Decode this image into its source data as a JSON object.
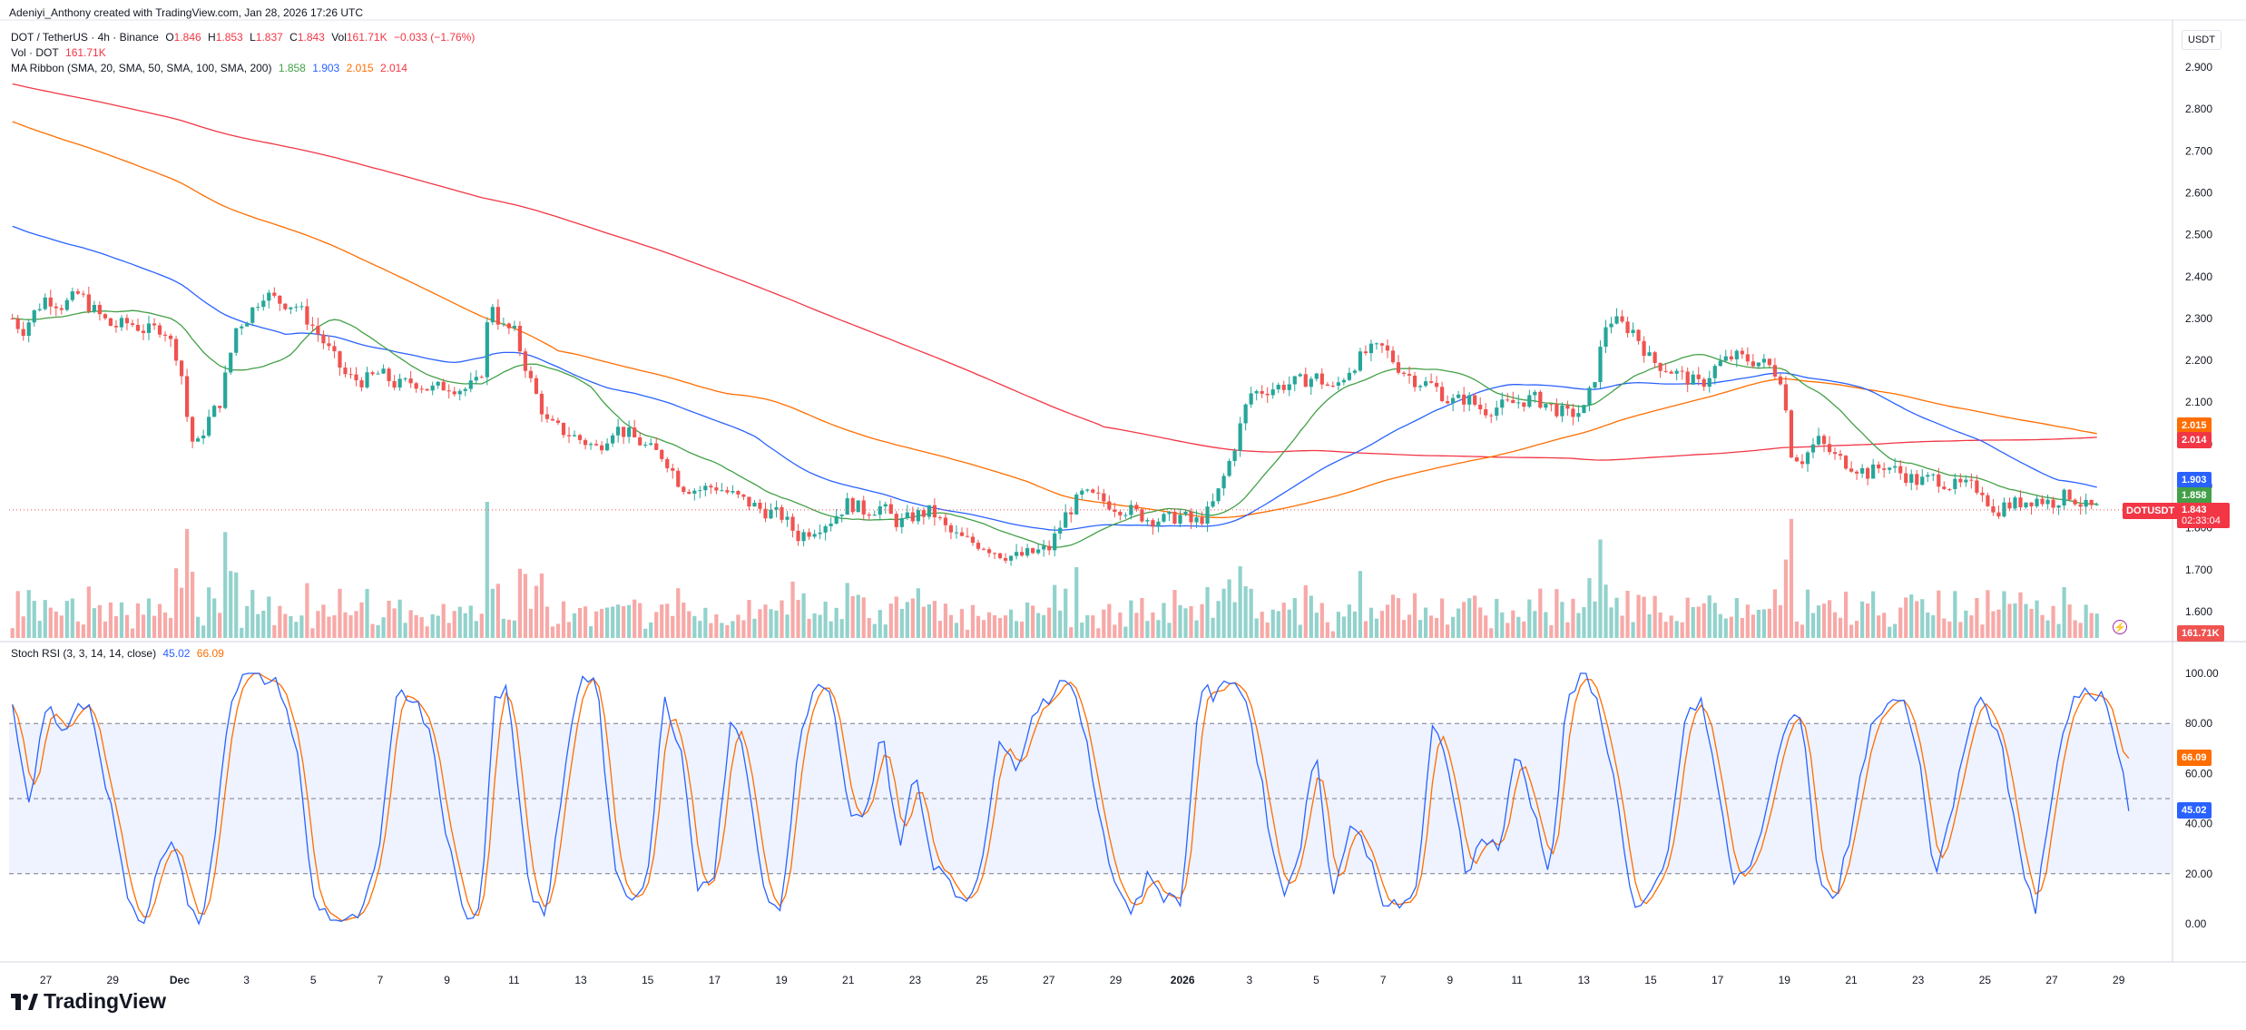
{
  "credit": "Adeniyi_Anthony created with TradingView.com, Jan 28, 2026 17:26 UTC",
  "currency_label": "USDT",
  "legend": {
    "symbol_line": {
      "symbol": "DOT / TetherUS · 4h · Binance",
      "o_label": "O",
      "o": "1.846",
      "h_label": "H",
      "h": "1.853",
      "l_label": "L",
      "l": "1.837",
      "c_label": "C",
      "c": "1.843",
      "vol_label": "Vol",
      "vol": "161.71K",
      "change": "−0.033 (−1.76%)"
    },
    "vol_line": {
      "label": "Vol · DOT",
      "value": "161.71K"
    },
    "ma_line": {
      "label": "MA Ribbon (SMA, 20, SMA, 50, SMA, 100, SMA, 200)",
      "v20": "1.858",
      "v50": "1.903",
      "v100": "2.015",
      "v200": "2.014"
    },
    "stoch_line": {
      "label": "Stoch RSI (3, 3, 14, 14, close)",
      "k": "45.02",
      "d": "66.09"
    }
  },
  "price_tags": {
    "ma100": "2.015",
    "ma200": "2.014",
    "ma50": "1.903",
    "ma20": "1.858",
    "last_price": "1.843",
    "ticker": "DOTUSDT",
    "countdown": "02:33:04",
    "volume": "161.71K",
    "stoch_d": "66.09",
    "stoch_k": "45.02"
  },
  "brand": "TradingView",
  "colors": {
    "up": "#26a69a",
    "down": "#ef5350",
    "ma20": "#43a047",
    "ma50": "#2962ff",
    "ma100": "#ff6d00",
    "ma200": "#f23645",
    "stoch_k": "#2962ff",
    "stoch_d": "#ff6d00"
  },
  "chart_data": [
    {
      "type": "candlestick",
      "title": "DOT / TetherUS · 4h · Binance",
      "y_ticks": [
        "2.900",
        "2.800",
        "2.700",
        "2.600",
        "2.500",
        "2.400",
        "2.300",
        "2.200",
        "2.100",
        "2.000",
        "1.900",
        "1.800",
        "1.700",
        "1.600"
      ],
      "ylim": [
        1.56,
        2.94
      ],
      "x_ticks": [
        "27",
        "29",
        "Dec",
        "3",
        "5",
        "7",
        "9",
        "11",
        "13",
        "15",
        "17",
        "19",
        "21",
        "23",
        "25",
        "27",
        "29",
        "2026",
        "3",
        "5",
        "7",
        "9",
        "11",
        "13",
        "15",
        "17",
        "19",
        "21",
        "23",
        "25",
        "27",
        "29"
      ],
      "x_tick_days": [
        27,
        29,
        31,
        33,
        35,
        37,
        39,
        41,
        43,
        45,
        47,
        49,
        51,
        53,
        55,
        57,
        59,
        61,
        63,
        65,
        67,
        69,
        71,
        73,
        75,
        77,
        79,
        81,
        83,
        85,
        87,
        89
      ],
      "x_day_range": [
        25.9,
        90.5
      ],
      "close_anchors": {
        "day": [
          26,
          26.3,
          26.7,
          27,
          27.5,
          28,
          28.3,
          28.7,
          29,
          29.5,
          30,
          30.5,
          31,
          31.3,
          31.5,
          31.8,
          32.2,
          32.7,
          33,
          33.5,
          34,
          34.5,
          35,
          35.5,
          36,
          36.5,
          37,
          37.5,
          38,
          38.5,
          39,
          39.5,
          40,
          40.3,
          40.6,
          41,
          41.5,
          42,
          42.5,
          43,
          43.5,
          44,
          44.5,
          45,
          45.5,
          46,
          46.5,
          47,
          47.5,
          48,
          48.5,
          49,
          49.5,
          50,
          50.5,
          51,
          51.5,
          52,
          52.5,
          53,
          53.5,
          54,
          54.5,
          55,
          55.5,
          56,
          56.5,
          57,
          57.5,
          58,
          58.5,
          59,
          59.5,
          60,
          60.5,
          61,
          61.3,
          61.7,
          62,
          62.5,
          63,
          63.5,
          64,
          64.5,
          65,
          65.5,
          66,
          66.5,
          67,
          67.5,
          68,
          68.5,
          69,
          69.5,
          70,
          70.5,
          71,
          71.5,
          72,
          72.5,
          73,
          73.3,
          73.7,
          74,
          74.5,
          75,
          75.5,
          76,
          76.5,
          77,
          77.5,
          78,
          78.5,
          79,
          79.1,
          79.5,
          80,
          80.5,
          81,
          81.5,
          82,
          82.5,
          83,
          83.5,
          84,
          84.5,
          85,
          85.2,
          85.5,
          86,
          86.5,
          87,
          87.5,
          88,
          88.5,
          89
        ],
        "close": [
          2.3,
          2.27,
          2.32,
          2.35,
          2.33,
          2.36,
          2.33,
          2.3,
          2.28,
          2.29,
          2.27,
          2.28,
          2.2,
          2.02,
          1.99,
          2.05,
          2.1,
          2.28,
          2.3,
          2.36,
          2.34,
          2.33,
          2.28,
          2.22,
          2.16,
          2.15,
          2.17,
          2.14,
          2.15,
          2.13,
          2.14,
          2.13,
          2.15,
          2.35,
          2.28,
          2.27,
          2.15,
          2.05,
          2.03,
          2.01,
          1.99,
          2.04,
          2.02,
          1.99,
          1.97,
          1.9,
          1.89,
          1.9,
          1.88,
          1.86,
          1.84,
          1.83,
          1.78,
          1.8,
          1.82,
          1.86,
          1.84,
          1.85,
          1.81,
          1.83,
          1.84,
          1.79,
          1.77,
          1.76,
          1.74,
          1.73,
          1.74,
          1.75,
          1.83,
          1.88,
          1.87,
          1.85,
          1.84,
          1.82,
          1.82,
          1.83,
          1.81,
          1.83,
          1.87,
          1.98,
          2.12,
          2.13,
          2.14,
          2.15,
          2.16,
          2.13,
          2.18,
          2.22,
          2.23,
          2.18,
          2.15,
          2.14,
          2.1,
          2.11,
          2.08,
          2.09,
          2.1,
          2.11,
          2.09,
          2.07,
          2.08,
          2.15,
          2.3,
          2.29,
          2.27,
          2.2,
          2.18,
          2.16,
          2.14,
          2.19,
          2.21,
          2.2,
          2.19,
          2.15,
          1.99,
          1.96,
          2.01,
          1.97,
          1.95,
          1.93,
          1.95,
          1.93,
          1.91,
          1.92,
          1.9,
          1.9,
          1.89,
          1.83,
          1.85,
          1.86,
          1.87,
          1.86,
          1.88,
          1.85,
          1.843
        ]
      }
    },
    {
      "type": "line",
      "title": "Stoch RSI (3, 3, 14, 14, close)",
      "y_ticks": [
        "100.00",
        "80.00",
        "60.00",
        "40.00",
        "20.00",
        "0.00"
      ],
      "ylim": [
        -3,
        105
      ],
      "bands": [
        20,
        50,
        80
      ],
      "series": [
        {
          "name": "K",
          "last": 45.02
        },
        {
          "name": "D",
          "last": 66.09
        }
      ],
      "k_anchors": {
        "day": [
          26,
          26.5,
          27,
          27.5,
          28,
          28.4,
          28.8,
          29,
          29.5,
          30,
          30.5,
          31,
          31.3,
          31.7,
          32,
          32.5,
          33,
          33.5,
          34,
          34.5,
          35,
          35.5,
          36,
          36.5,
          37,
          37.5,
          38,
          38.5,
          39,
          39.5,
          40,
          40.4,
          40.8,
          41,
          41.5,
          42,
          42.5,
          43,
          43.5,
          44,
          44.5,
          45,
          45.5,
          46,
          46.5,
          47,
          47.5,
          48,
          48.5,
          49,
          49.5,
          50,
          50.5,
          51,
          51.5,
          52,
          52.5,
          53,
          53.5,
          54,
          54.5,
          55,
          55.5,
          56,
          56.5,
          57,
          57.5,
          58,
          58.5,
          59,
          59.5,
          60,
          60.5,
          61,
          61.5,
          62,
          62.5,
          63,
          63.5,
          64,
          64.5,
          65,
          65.5,
          66,
          66.5,
          67,
          67.5,
          68,
          68.5,
          69,
          69.5,
          70,
          70.5,
          71,
          71.5,
          72,
          72.5,
          73,
          73.5,
          74,
          74.5,
          75,
          75.5,
          76,
          76.5,
          77,
          77.5,
          78,
          78.5,
          79,
          79.5,
          80,
          80.5,
          81,
          81.5,
          82,
          82.5,
          83,
          83.5,
          84,
          84.5,
          85,
          85.5,
          86,
          86.5,
          87,
          87.5,
          88,
          88.5,
          89,
          89.3
        ],
        "k": [
          85,
          45,
          88,
          75,
          90,
          85,
          50,
          45,
          5,
          3,
          30,
          30,
          5,
          0,
          30,
          90,
          100,
          98,
          95,
          70,
          10,
          3,
          0,
          5,
          30,
          95,
          90,
          78,
          35,
          3,
          5,
          90,
          95,
          70,
          10,
          5,
          60,
          100,
          95,
          20,
          10,
          20,
          90,
          70,
          15,
          20,
          85,
          60,
          10,
          5,
          70,
          95,
          90,
          45,
          40,
          80,
          30,
          60,
          25,
          20,
          5,
          25,
          75,
          60,
          85,
          90,
          100,
          80,
          45,
          15,
          5,
          20,
          10,
          10,
          95,
          90,
          100,
          85,
          45,
          10,
          30,
          70,
          10,
          40,
          30,
          10,
          5,
          15,
          80,
          60,
          20,
          35,
          30,
          70,
          45,
          20,
          90,
          100,
          85,
          50,
          5,
          10,
          25,
          80,
          90,
          55,
          15,
          25,
          45,
          80,
          85,
          20,
          10,
          35,
          75,
          85,
          90,
          70,
          20,
          45,
          80,
          90,
          70,
          30,
          5,
          50,
          85,
          95,
          90,
          70,
          45
        ]
      }
    }
  ]
}
